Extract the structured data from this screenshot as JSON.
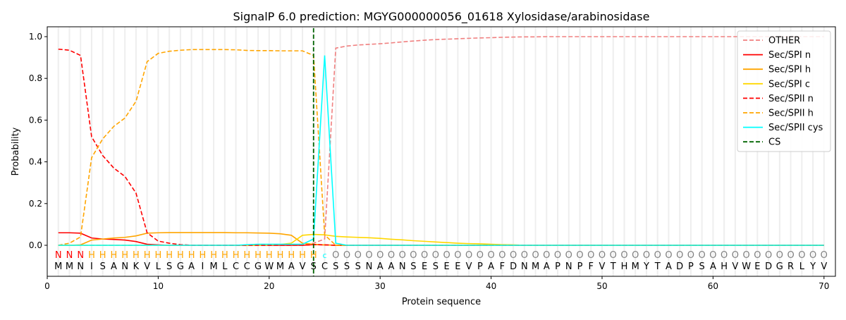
{
  "chart_data": {
    "type": "line",
    "title": "SignalP 6.0 prediction: MGYG000000056_01618 Xylosidase/arabinosidase",
    "xlabel": "Protein sequence",
    "ylabel": "Probability",
    "xlim": [
      0,
      71
    ],
    "ylim": [
      -0.15,
      1.05
    ],
    "xticks": [
      0,
      10,
      20,
      30,
      40,
      50,
      60,
      70
    ],
    "yticks": [
      0.0,
      0.2,
      0.4,
      0.6,
      0.8,
      1.0
    ],
    "legend_position": "top-right",
    "sequence": "MMNISANKVLSGAIMLCCGWMAVSCSSSNAANSESEEVPAFDNMAPNPFVTHMYTADPSAHVWEDGRLYV",
    "labels": "NNNHHHHHHHHHHHHHHHHHHHHHcOOOOOOOOOOOOOOOOOOOOOOOOOOOOOOOOOOOOOOOOOOOOO",
    "label_colors": {
      "N": "#ff0000",
      "H": "#ffa500",
      "c": "#00ffff",
      "O": "#808080"
    },
    "cs_position": 24,
    "series": [
      {
        "name": "OTHER",
        "color": "#f08080",
        "dash": true,
        "values": [
          0,
          0,
          0,
          0,
          0,
          0,
          0,
          0,
          0,
          0,
          0,
          0,
          0,
          0,
          0,
          0,
          0,
          0,
          0,
          0,
          0,
          0,
          0.003,
          0.01,
          0.03,
          0.945,
          0.955,
          0.96,
          0.963,
          0.966,
          0.97,
          0.975,
          0.979,
          0.983,
          0.986,
          0.988,
          0.99,
          0.992,
          0.994,
          0.995,
          0.997,
          0.998,
          0.999,
          0.999,
          1,
          1,
          1,
          1,
          1,
          1,
          1,
          1,
          1,
          1,
          1,
          1,
          1,
          1,
          1,
          1,
          1,
          1,
          1,
          1,
          1,
          1,
          1,
          1,
          1,
          1
        ]
      },
      {
        "name": "Sec/SPI n",
        "color": "#ff0000",
        "dash": false,
        "values": [
          0.06,
          0.06,
          0.058,
          0.035,
          0.03,
          0.028,
          0.025,
          0.018,
          0.005,
          0.002,
          0,
          0,
          0,
          0,
          0,
          0,
          0,
          0,
          0,
          0,
          0,
          0,
          0,
          0.003,
          0.002,
          0,
          0,
          0,
          0,
          0,
          0,
          0,
          0,
          0,
          0,
          0,
          0,
          0,
          0,
          0,
          0,
          0,
          0,
          0,
          0,
          0,
          0,
          0,
          0,
          0,
          0,
          0,
          0,
          0,
          0,
          0,
          0,
          0,
          0,
          0,
          0,
          0,
          0,
          0,
          0,
          0,
          0,
          0,
          0,
          0
        ]
      },
      {
        "name": "Sec/SPI h",
        "color": "#ffa500",
        "dash": false,
        "values": [
          0,
          0,
          0.002,
          0.025,
          0.03,
          0.035,
          0.038,
          0.045,
          0.058,
          0.06,
          0.061,
          0.061,
          0.061,
          0.061,
          0.061,
          0.061,
          0.06,
          0.06,
          0.059,
          0.058,
          0.055,
          0.048,
          0.01,
          0.005,
          0.002,
          0,
          0,
          0,
          0,
          0,
          0,
          0,
          0,
          0,
          0,
          0,
          0,
          0,
          0,
          0,
          0,
          0,
          0,
          0,
          0,
          0,
          0,
          0,
          0,
          0,
          0,
          0,
          0,
          0,
          0,
          0,
          0,
          0,
          0,
          0,
          0,
          0,
          0,
          0,
          0,
          0,
          0,
          0,
          0,
          0
        ]
      },
      {
        "name": "Sec/SPI c",
        "color": "#ffd700",
        "dash": false,
        "values": [
          0,
          0,
          0,
          0,
          0,
          0,
          0,
          0,
          0,
          0,
          0,
          0,
          0,
          0,
          0,
          0,
          0,
          0,
          0,
          0.002,
          0.004,
          0.01,
          0.048,
          0.052,
          0.05,
          0.043,
          0.04,
          0.038,
          0.036,
          0.033,
          0.029,
          0.026,
          0.022,
          0.019,
          0.016,
          0.013,
          0.01,
          0.008,
          0.007,
          0.005,
          0.003,
          0.002,
          0,
          0,
          0,
          0,
          0,
          0,
          0,
          0,
          0,
          0,
          0,
          0,
          0,
          0,
          0,
          0,
          0,
          0,
          0,
          0,
          0,
          0,
          0,
          0,
          0,
          0,
          0,
          0
        ]
      },
      {
        "name": "Sec/SPII n",
        "color": "#ff0000",
        "dash": true,
        "values": [
          0.94,
          0.935,
          0.91,
          0.52,
          0.43,
          0.37,
          0.33,
          0.25,
          0.06,
          0.02,
          0.01,
          0.003,
          0,
          0,
          0,
          0,
          0,
          0,
          0,
          0,
          0,
          0,
          0,
          0.003,
          0.002,
          0,
          0,
          0,
          0,
          0,
          0,
          0,
          0,
          0,
          0,
          0,
          0,
          0,
          0,
          0,
          0,
          0,
          0,
          0,
          0,
          0,
          0,
          0,
          0,
          0,
          0,
          0,
          0,
          0,
          0,
          0,
          0,
          0,
          0,
          0,
          0,
          0,
          0,
          0,
          0,
          0,
          0,
          0,
          0,
          0
        ]
      },
      {
        "name": "Sec/SPII h",
        "color": "#ffa500",
        "dash": true,
        "values": [
          0,
          0.01,
          0.04,
          0.42,
          0.51,
          0.57,
          0.61,
          0.69,
          0.88,
          0.92,
          0.93,
          0.935,
          0.938,
          0.938,
          0.938,
          0.938,
          0.937,
          0.934,
          0.933,
          0.933,
          0.932,
          0.932,
          0.932,
          0.91,
          0.05,
          0,
          0,
          0,
          0,
          0,
          0,
          0,
          0,
          0,
          0,
          0,
          0,
          0,
          0,
          0,
          0,
          0,
          0,
          0,
          0,
          0,
          0,
          0,
          0,
          0,
          0,
          0,
          0,
          0,
          0,
          0,
          0,
          0,
          0,
          0,
          0,
          0,
          0,
          0,
          0,
          0,
          0,
          0,
          0,
          0
        ]
      },
      {
        "name": "Sec/SPII cys",
        "color": "#00ffff",
        "dash": false,
        "values": [
          0,
          0,
          0,
          0,
          0,
          0,
          0,
          0,
          0,
          0,
          0,
          0,
          0,
          0,
          0,
          0,
          0,
          0.003,
          0.005,
          0.005,
          0.005,
          0.005,
          0.005,
          0.03,
          0.91,
          0.01,
          0,
          0,
          0,
          0,
          0,
          0,
          0,
          0,
          0,
          0,
          0,
          0,
          0,
          0,
          0,
          0,
          0,
          0,
          0,
          0,
          0,
          0,
          0,
          0,
          0,
          0,
          0,
          0,
          0,
          0,
          0,
          0,
          0,
          0,
          0,
          0,
          0,
          0,
          0,
          0,
          0,
          0,
          0,
          0
        ]
      }
    ],
    "cs_legend": {
      "name": "CS",
      "color": "#006400"
    }
  }
}
